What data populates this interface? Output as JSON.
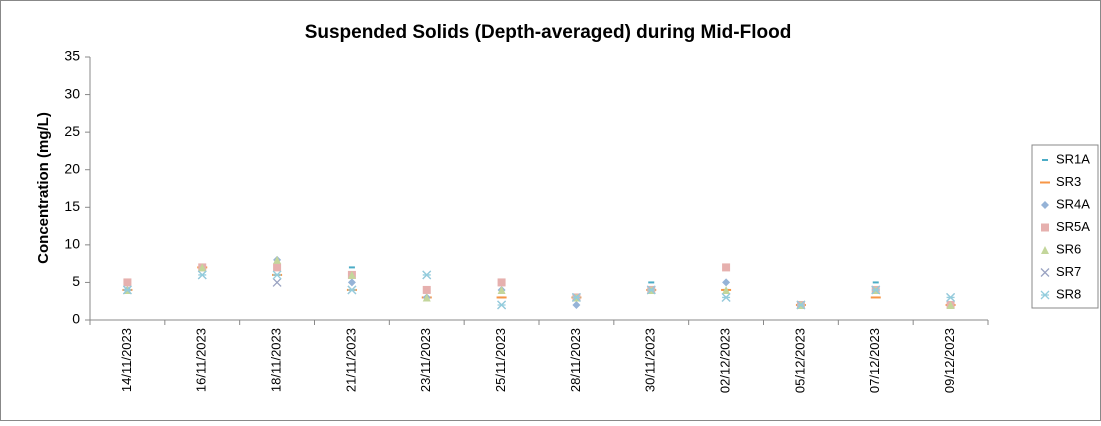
{
  "chart_data": {
    "type": "scatter",
    "title": "Suspended Solids (Depth-averaged) during Mid-Flood",
    "ylabel": "Concentration (mg/L)",
    "categories": [
      "14/11/2023",
      "16/11/2023",
      "18/11/2023",
      "21/11/2023",
      "23/11/2023",
      "25/11/2023",
      "28/11/2023",
      "30/11/2023",
      "02/12/2023",
      "05/12/2023",
      "07/12/2023",
      "09/12/2023"
    ],
    "ylim": [
      0,
      35
    ],
    "yticks": [
      0,
      5,
      10,
      15,
      20,
      25,
      30,
      35
    ],
    "grid": false,
    "legend": "right",
    "series": [
      {
        "name": "SR1A",
        "color": "#4bacc6",
        "marker": "dash",
        "values": [
          4,
          7,
          6,
          7,
          3,
          3,
          3,
          5,
          4,
          2,
          5,
          2
        ]
      },
      {
        "name": "SR3",
        "color": "#f79646",
        "marker": "bar",
        "values": [
          4,
          7,
          6,
          4,
          3,
          3,
          3,
          4,
          4,
          2,
          3,
          2
        ]
      },
      {
        "name": "SR4A",
        "color": "#95b3d7",
        "marker": "diamond",
        "values": [
          4,
          7,
          8,
          5,
          3,
          4,
          2,
          4,
          5,
          2,
          4,
          2
        ]
      },
      {
        "name": "SR5A",
        "color": "#e6b0ae",
        "marker": "square",
        "values": [
          5,
          7,
          7,
          6,
          4,
          5,
          3,
          4,
          7,
          2,
          4,
          2
        ]
      },
      {
        "name": "SR6",
        "color": "#c3d69b",
        "marker": "triangle",
        "values": [
          4,
          7,
          8,
          6,
          3,
          4,
          3,
          4,
          4,
          2,
          4,
          2
        ]
      },
      {
        "name": "SR7",
        "color": "#9aa3c2",
        "marker": "x",
        "values": [
          4,
          6,
          5,
          4,
          6,
          2,
          3,
          4,
          3,
          2,
          4,
          3
        ]
      },
      {
        "name": "SR8",
        "color": "#93cddd",
        "marker": "star",
        "values": [
          4,
          6,
          6,
          4,
          6,
          2,
          3,
          4,
          3,
          2,
          4,
          3
        ]
      }
    ]
  }
}
